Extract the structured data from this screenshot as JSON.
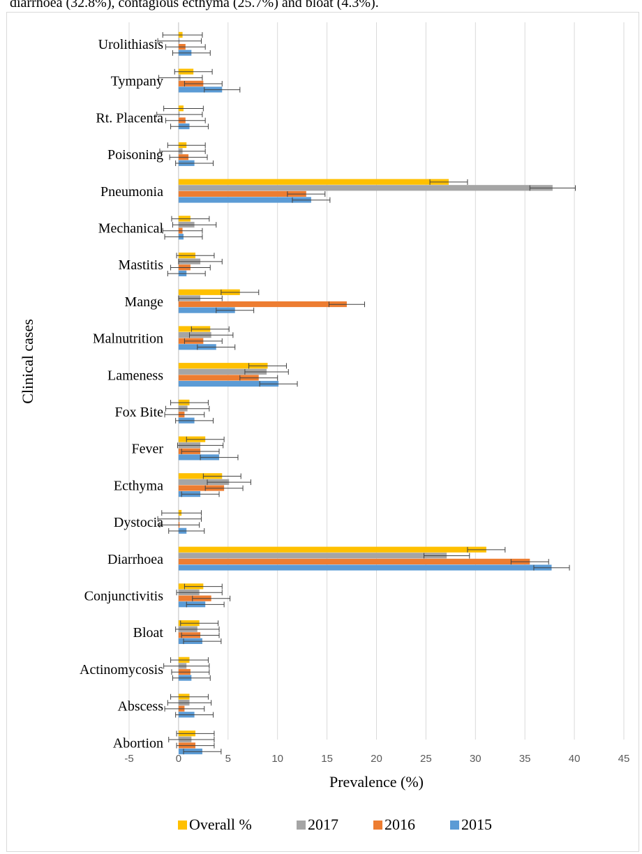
{
  "caption": "diarrhoea (32.8%), contagious ecthyma (25.7%) and bloat (4.3%).",
  "chart_data": {
    "type": "bar",
    "orientation": "horizontal",
    "xlabel": "Prevalence (%)",
    "ylabel": "Clinical cases",
    "xlim": [
      -5,
      45
    ],
    "xticks": [
      "-5",
      "0",
      "5",
      "10",
      "15",
      "20",
      "25",
      "30",
      "35",
      "40",
      "45"
    ],
    "grid": "vertical gridlines",
    "legend_position": "bottom",
    "categories": [
      "Urolithiasis",
      "Tympany",
      "Rt. Placenta",
      "Poisoning",
      "Pneumonia",
      "Mechanical",
      "Mastitis",
      "Mange",
      "Malnutrition",
      "Lameness",
      "Fox Bite",
      "Fever",
      "Ecthyma",
      "Dystocia",
      "Diarrhoea",
      "Conjunctivitis",
      "Bloat",
      "Actinomycosis",
      "Abscess",
      "Abortion"
    ],
    "series": [
      {
        "name": "Overall %",
        "color": "#ffc000",
        "values": [
          0.4,
          1.5,
          0.5,
          0.8,
          27.3,
          1.2,
          1.7,
          6.2,
          3.2,
          9.0,
          1.1,
          2.7,
          4.4,
          0.3,
          31.1,
          2.5,
          2.1,
          1.1,
          1.1,
          1.7
        ],
        "errors": [
          2.0,
          1.9,
          2.0,
          1.9,
          1.9,
          1.9,
          1.9,
          1.9,
          1.9,
          1.9,
          1.9,
          1.9,
          1.9,
          2.0,
          1.9,
          1.9,
          1.9,
          1.9,
          1.9,
          1.9
        ]
      },
      {
        "name": "2017",
        "color": "#a5a5a5",
        "values": [
          0.1,
          0.2,
          0.1,
          0.4,
          37.8,
          1.6,
          2.2,
          2.2,
          3.3,
          8.9,
          0.9,
          2.2,
          5.1,
          0.1,
          27.1,
          2.1,
          1.9,
          0.8,
          1.1,
          1.3
        ],
        "errors": [
          2.2,
          2.2,
          2.3,
          2.3,
          2.3,
          2.2,
          2.2,
          2.2,
          2.2,
          2.2,
          2.2,
          2.3,
          2.2,
          2.2,
          2.3,
          2.3,
          2.2,
          2.3,
          2.2,
          2.3
        ]
      },
      {
        "name": "2016",
        "color": "#ed7d31",
        "values": [
          0.7,
          2.5,
          0.7,
          1.0,
          12.9,
          0.4,
          1.2,
          17.0,
          2.5,
          8.1,
          0.6,
          2.2,
          4.6,
          0.1,
          35.5,
          3.3,
          2.2,
          1.2,
          0.6,
          1.7
        ],
        "errors": [
          2.0,
          1.9,
          2.0,
          1.9,
          1.9,
          2.0,
          2.0,
          1.8,
          1.9,
          1.9,
          2.0,
          1.9,
          1.9,
          2.0,
          1.9,
          1.9,
          1.9,
          1.9,
          2.0,
          1.9
        ]
      },
      {
        "name": "2015",
        "color": "#5b9bd5",
        "values": [
          1.3,
          4.4,
          1.1,
          1.6,
          13.4,
          0.5,
          0.8,
          5.7,
          3.8,
          10.1,
          1.6,
          4.1,
          2.2,
          0.8,
          37.7,
          2.7,
          2.4,
          1.3,
          1.6,
          2.4
        ],
        "errors": [
          1.9,
          1.8,
          1.9,
          1.9,
          1.9,
          1.9,
          1.9,
          1.9,
          1.9,
          1.9,
          1.9,
          1.9,
          1.9,
          1.8,
          1.8,
          1.9,
          1.9,
          1.9,
          1.9,
          1.9
        ]
      }
    ]
  }
}
